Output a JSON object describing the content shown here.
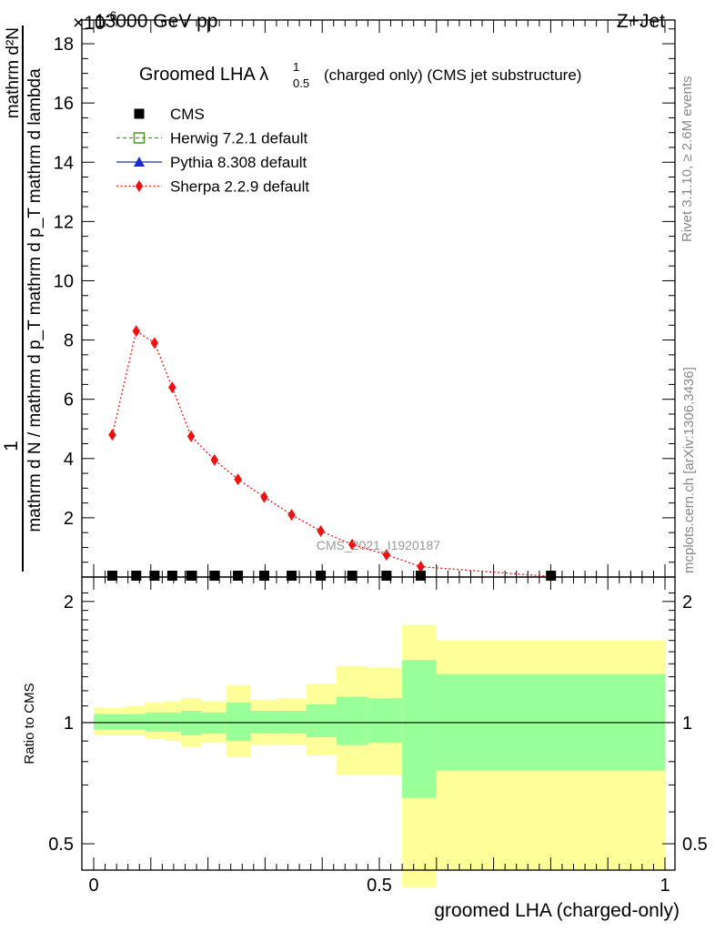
{
  "header": {
    "left": "13000 GeV pp",
    "right": "Z+Jet",
    "exponent": "×10",
    "exponent_power": "-6"
  },
  "side_labels": {
    "rivet": "Rivet 3.1.10, ≥ 2.6M events",
    "mcplots": "mcplots.cern.ch [arXiv:1306.3436]"
  },
  "watermark": "CMS_2021_I1920187",
  "chart_data": [
    {
      "type": "line",
      "title_main": "Groomed LHA λ",
      "title_sup": "1",
      "title_sub": "0.5",
      "title_rest": "(charged only) (CMS jet substructure)",
      "ylabel_top": "1",
      "ylabel_bottom": "mathrm d N / mathrm d p_T mathrm d p_T mathrm d lambda",
      "ylabel_numerator": "mathrm d²N",
      "ylabel_prefix": "mathrm d N / mathrm d p",
      "ylabel_mid": "mathrm d p",
      "ylabel_end": "mathrm d lambda",
      "ylabel_sub": "T",
      "xlim": [
        0,
        1
      ],
      "ylim": [
        0,
        18.8
      ],
      "yticks": [
        "2",
        "4",
        "6",
        "8",
        "10",
        "12",
        "14",
        "16",
        "18"
      ],
      "legend": [
        {
          "name": "CMS",
          "color": "#000000",
          "marker": "square",
          "line": "none"
        },
        {
          "name": "Herwig 7.2.1 default",
          "color": "#4a9a1f",
          "marker": "open-square",
          "line": "dashed"
        },
        {
          "name": "Pythia 8.308 default",
          "color": "#1a2fc8",
          "marker": "triangle",
          "line": "solid"
        },
        {
          "name": "Sherpa 2.2.9 default",
          "color": "#ee1111",
          "marker": "diamond",
          "line": "dotted"
        }
      ],
      "series": [
        {
          "name": "CMS",
          "x": [
            0.0325,
            0.0745,
            0.1065,
            0.1375,
            0.1705,
            0.2115,
            0.2525,
            0.2985,
            0.3465,
            0.3975,
            0.4525,
            0.5125,
            0.5725,
            0.8005
          ],
          "y": [
            0.02,
            0.02,
            0.02,
            0.02,
            0.02,
            0.02,
            0.02,
            0.02,
            0.02,
            0.02,
            0.02,
            0.02,
            0.02,
            0.02
          ]
        },
        {
          "name": "Sherpa 2.2.9 default",
          "x": [
            0.0325,
            0.0745,
            0.1065,
            0.1375,
            0.1705,
            0.2115,
            0.2525,
            0.2985,
            0.3465,
            0.3975,
            0.4525,
            0.5125,
            0.5725,
            0.8005
          ],
          "y": [
            4.8,
            8.3,
            7.9,
            6.4,
            4.75,
            3.95,
            3.3,
            2.7,
            2.1,
            1.55,
            1.1,
            0.75,
            0.35,
            0.02
          ]
        }
      ]
    },
    {
      "type": "area",
      "ylabel": "Ratio to CMS",
      "xlabel": "groomed LHA (charged-only)",
      "xlim": [
        0,
        1
      ],
      "ylim": [
        0.43,
        2.3
      ],
      "log_y": true,
      "yticks": [
        "0.5",
        "1",
        "2"
      ],
      "xticks": [
        "0",
        "0.5",
        "1"
      ],
      "bin_edges": [
        0.0,
        0.055,
        0.09,
        0.123,
        0.153,
        0.188,
        0.232,
        0.275,
        0.323,
        0.372,
        0.425,
        0.48,
        0.54,
        0.6,
        1.0
      ],
      "band_outer": [
        [
          0.93,
          1.09
        ],
        [
          0.93,
          1.1
        ],
        [
          0.91,
          1.12
        ],
        [
          0.9,
          1.13
        ],
        [
          0.87,
          1.15
        ],
        [
          0.89,
          1.13
        ],
        [
          0.82,
          1.24
        ],
        [
          0.88,
          1.14
        ],
        [
          0.88,
          1.15
        ],
        [
          0.83,
          1.25
        ],
        [
          0.74,
          1.38
        ],
        [
          0.74,
          1.37
        ],
        [
          0.39,
          1.75
        ],
        [
          0.43,
          1.6
        ]
      ],
      "band_inner": [
        [
          0.96,
          1.05
        ],
        [
          0.96,
          1.05
        ],
        [
          0.95,
          1.06
        ],
        [
          0.95,
          1.06
        ],
        [
          0.93,
          1.07
        ],
        [
          0.94,
          1.06
        ],
        [
          0.9,
          1.12
        ],
        [
          0.94,
          1.07
        ],
        [
          0.94,
          1.07
        ],
        [
          0.92,
          1.11
        ],
        [
          0.88,
          1.16
        ],
        [
          0.89,
          1.15
        ],
        [
          0.65,
          1.43
        ],
        [
          0.76,
          1.32
        ]
      ],
      "outer_color": "#ffff99",
      "inner_color": "#99ff99"
    }
  ]
}
